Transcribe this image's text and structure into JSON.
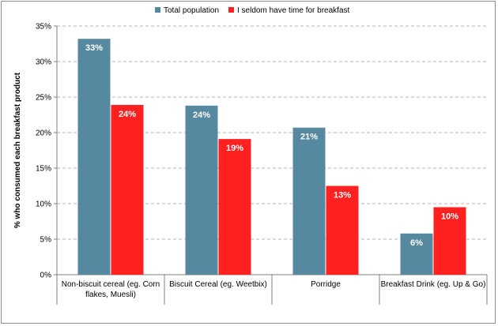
{
  "chart_data": {
    "type": "bar",
    "title": "",
    "xlabel": "",
    "ylabel": "% who consumed each breakfast product",
    "ylim": [
      0,
      35
    ],
    "y_ticks": [
      "0%",
      "5%",
      "10%",
      "15%",
      "20%",
      "25%",
      "30%",
      "35%"
    ],
    "y_tick_values": [
      0,
      5,
      10,
      15,
      20,
      25,
      30,
      35
    ],
    "grid": true,
    "legend_position": "top",
    "categories": [
      [
        "Non-biscuit cereal (eg. Corn",
        "flakes, Muesli)"
      ],
      [
        "Biscuit Cereal (eg. Weetbix)"
      ],
      [
        "Porridge"
      ],
      [
        "Breakfast Drink (eg. Up & Go)"
      ]
    ],
    "series": [
      {
        "name": "Total population",
        "color": "#5689a0",
        "values": [
          33.2,
          23.8,
          20.7,
          5.8
        ],
        "labels": [
          "33%",
          "24%",
          "21%",
          "6%"
        ]
      },
      {
        "name": "I seldom have time for breakfast",
        "color": "#ff2020",
        "values": [
          23.9,
          19.1,
          12.5,
          9.5
        ],
        "labels": [
          "24%",
          "19%",
          "13%",
          "10%"
        ]
      }
    ]
  }
}
